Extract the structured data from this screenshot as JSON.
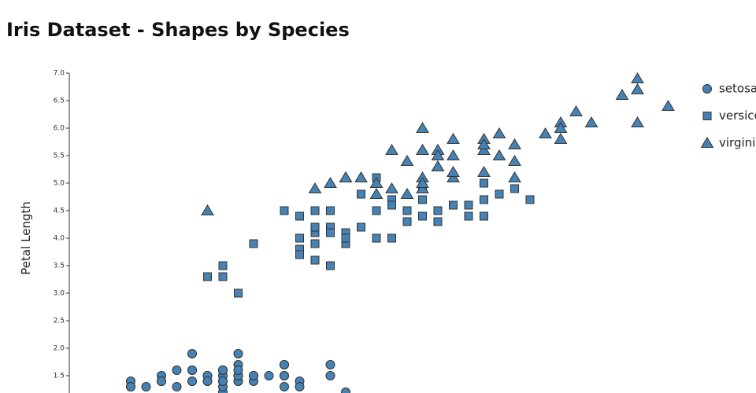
{
  "chart_data": {
    "type": "scatter",
    "title": "Iris Dataset - Shapes by Species",
    "ylabel": "Petal Length",
    "xlim": [
      4,
      8
    ],
    "ylim": [
      1.2,
      7
    ],
    "yticks": [
      1.5,
      {
        "value": 2,
        "label": "2.0"
      },
      2.5,
      {
        "value": 3,
        "label": "3.0"
      },
      3.5,
      {
        "value": 4,
        "label": "4.0"
      },
      4.5,
      {
        "value": 5,
        "label": "5.0"
      },
      5.5,
      {
        "value": 6,
        "label": "6.0"
      },
      6.5,
      {
        "value": 7,
        "label": "7.0"
      }
    ],
    "series": [
      {
        "name": "setosa",
        "color": "#4682b4",
        "marker": "circle",
        "x": [
          5.1,
          4.9,
          4.7,
          4.6,
          5.0,
          5.4,
          4.6,
          5.0,
          4.4,
          4.9,
          5.4,
          4.8,
          4.8,
          5.8,
          5.7,
          5.4,
          5.1,
          5.7,
          5.1,
          5.4,
          5.1,
          5.1,
          4.8,
          5.0,
          5.0,
          5.2,
          5.2,
          4.7,
          4.8,
          5.4,
          5.2,
          5.5,
          4.9,
          5.0,
          5.5,
          4.9,
          4.4,
          5.1,
          5.0,
          4.5,
          4.4,
          5.0,
          5.1,
          4.8,
          5.1,
          4.6,
          5.3,
          5.0
        ],
        "values": [
          1.4,
          1.4,
          1.3,
          1.5,
          1.4,
          1.7,
          1.4,
          1.5,
          1.4,
          1.5,
          1.5,
          1.6,
          1.4,
          1.2,
          1.5,
          1.3,
          1.4,
          1.7,
          1.5,
          1.7,
          1.5,
          1.7,
          1.9,
          1.6,
          1.6,
          1.5,
          1.4,
          1.6,
          1.6,
          1.5,
          1.5,
          1.4,
          1.5,
          1.2,
          1.3,
          1.4,
          1.3,
          1.5,
          1.3,
          1.3,
          1.3,
          1.6,
          1.9,
          1.4,
          1.6,
          1.4,
          1.5,
          1.4
        ]
      },
      {
        "name": "versicolor",
        "color": "#4682b4",
        "marker": "square",
        "x": [
          7.0,
          6.4,
          6.9,
          5.5,
          6.5,
          5.7,
          6.3,
          4.9,
          6.6,
          5.2,
          5.0,
          5.9,
          6.0,
          6.1,
          5.6,
          6.7,
          5.6,
          5.8,
          6.2,
          5.6,
          5.9,
          6.1,
          6.3,
          6.1,
          6.4,
          6.6,
          6.8,
          6.7,
          6.0,
          5.7,
          5.5,
          5.5,
          5.8,
          6.0,
          5.4,
          6.0,
          6.7,
          6.3,
          5.6,
          5.5,
          5.5,
          6.1,
          5.8,
          5.0,
          5.6,
          5.7,
          5.7,
          6.2,
          5.1,
          5.7
        ],
        "values": [
          4.7,
          4.5,
          4.9,
          4.0,
          4.6,
          4.5,
          4.7,
          3.3,
          4.6,
          3.9,
          3.5,
          4.2,
          4.0,
          4.7,
          3.6,
          4.4,
          4.5,
          4.1,
          4.5,
          3.9,
          4.8,
          4.0,
          4.9,
          4.7,
          4.3,
          4.4,
          4.8,
          5.0,
          4.5,
          3.5,
          3.8,
          3.7,
          3.9,
          5.1,
          4.5,
          4.5,
          4.7,
          4.4,
          4.1,
          4.0,
          4.4,
          4.6,
          4.0,
          3.3,
          4.2,
          4.2,
          4.2,
          4.3,
          3.0,
          4.1
        ]
      },
      {
        "name": "virginica",
        "color": "#4682b4",
        "marker": "triangle",
        "x": [
          6.3,
          5.8,
          7.1,
          6.3,
          6.5,
          7.6,
          4.9,
          7.3,
          6.7,
          7.2,
          6.5,
          6.4,
          6.8,
          5.7,
          5.8,
          6.4,
          6.5,
          7.7,
          7.7,
          6.0,
          6.9,
          5.6,
          7.7,
          6.3,
          6.7,
          7.2,
          6.2,
          6.1,
          6.4,
          7.2,
          7.4,
          7.9,
          6.4,
          6.3,
          6.1,
          7.7,
          6.3,
          6.4,
          6.0,
          6.9,
          6.7,
          6.9,
          5.8,
          6.8,
          6.7,
          6.7,
          6.3,
          6.5,
          6.2,
          5.9
        ],
        "values": [
          6.0,
          5.1,
          5.9,
          5.6,
          5.8,
          6.6,
          4.5,
          6.3,
          5.8,
          6.1,
          5.1,
          5.3,
          5.5,
          5.0,
          5.1,
          5.3,
          5.5,
          6.7,
          6.9,
          5.0,
          5.7,
          4.9,
          6.7,
          4.9,
          5.7,
          6.0,
          4.8,
          4.9,
          5.6,
          5.8,
          6.1,
          6.4,
          5.6,
          5.1,
          5.6,
          6.1,
          5.6,
          5.5,
          4.8,
          5.4,
          5.6,
          5.1,
          5.1,
          5.9,
          5.7,
          5.2,
          5.0,
          5.2,
          5.4,
          5.1
        ]
      }
    ]
  }
}
